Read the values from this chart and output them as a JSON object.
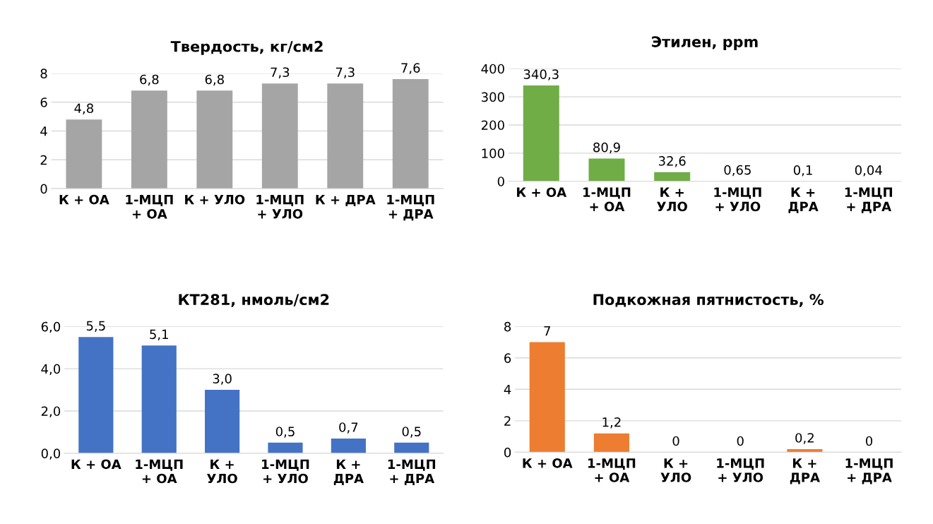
{
  "chart_data": [
    {
      "type": "bar",
      "title": "Твердость, кг/см2",
      "categories": [
        "К + ОА",
        "1-МЦП\n+ ОА",
        "К + УЛО",
        "1-МЦП\n+ УЛО",
        "К + ДРА",
        "1-МЦП\n+ ДРА"
      ],
      "values": [
        4.8,
        6.8,
        6.8,
        7.3,
        7.3,
        7.6
      ],
      "value_labels": [
        "4,8",
        "6,8",
        "6,8",
        "7,3",
        "7,3",
        "7,6"
      ],
      "color": "#a5a5a5",
      "ylim": [
        0,
        8
      ],
      "yticks": [
        0,
        2,
        4,
        6,
        8
      ],
      "grid": "y"
    },
    {
      "type": "bar",
      "title": "Этилен, ppm",
      "categories": [
        "К + ОА",
        "1-МЦП\n+ ОА",
        "К +\nУЛО",
        "1-МЦП\n+ УЛО",
        "К +\nДРА",
        "1-МЦП\n+ ДРА"
      ],
      "values": [
        340.3,
        80.9,
        32.6,
        0.65,
        0.1,
        0.04
      ],
      "value_labels": [
        "340,3",
        "80,9",
        "32,6",
        "0,65",
        "0,1",
        "0,04"
      ],
      "color": "#70ad47",
      "ylim": [
        0,
        400
      ],
      "yticks": [
        0,
        100,
        200,
        300,
        400
      ],
      "grid": "y"
    },
    {
      "type": "bar",
      "title": "КТ281, нмоль/см2",
      "categories": [
        "К + ОА",
        "1-МЦП\n+ ОА",
        "К +\nУЛО",
        "1-МЦП\n+ УЛО",
        "К +\nДРА",
        "1-МЦП\n+ ДРА"
      ],
      "values": [
        5.5,
        5.1,
        3.0,
        0.5,
        0.7,
        0.5
      ],
      "value_labels": [
        "5,5",
        "5,1",
        "3,0",
        "0,5",
        "0,7",
        "0,5"
      ],
      "color": "#4472c4",
      "ylim": [
        0,
        6
      ],
      "yticks": [
        {
          "value": 0,
          "label": "0,0"
        },
        {
          "value": 2,
          "label": "2,0"
        },
        {
          "value": 4,
          "label": "4,0"
        },
        {
          "value": 6,
          "label": "6,0"
        }
      ],
      "grid": "y"
    },
    {
      "type": "bar",
      "title": "Подкожная пятнистость, %",
      "categories": [
        "К + ОА",
        "1-МЦП\n+ ОА",
        "К +\nУЛО",
        "1-МЦП\n+ УЛО",
        "К +\nДРА",
        "1-МЦП\n+ ДРА"
      ],
      "values": [
        7,
        1.2,
        0,
        0,
        0.2,
        0
      ],
      "value_labels": [
        "7",
        "1,2",
        "0",
        "0",
        "0,2",
        "0"
      ],
      "color": "#ed7d31",
      "ylim": [
        0,
        8
      ],
      "yticks": [
        0,
        2,
        4,
        6,
        8
      ],
      "grid": "y"
    }
  ]
}
